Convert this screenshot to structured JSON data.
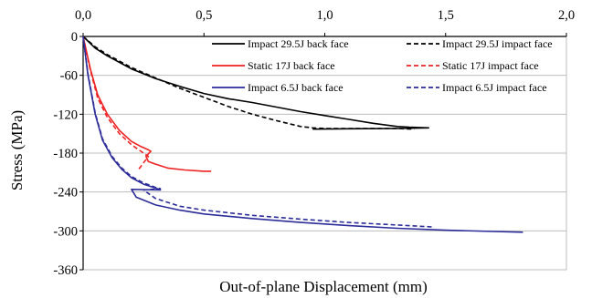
{
  "chart_data": {
    "type": "line",
    "title": "",
    "xlabel": "Out-of-plane Displacement (mm)",
    "ylabel": "Stress (MPa)",
    "xlim": [
      0,
      2
    ],
    "ylim": [
      -360,
      0
    ],
    "x_ticks": [
      "0,0",
      "0,5",
      "1,0",
      "1,5",
      "2,0"
    ],
    "y_ticks": [
      "0",
      "-60",
      "-120",
      "-180",
      "-240",
      "-300",
      "-360"
    ],
    "x_axis_position": "top",
    "grid": "horizontal",
    "legend_position": "top-right",
    "series": [
      {
        "name": "Impact 29.5J back face",
        "color": "#000000",
        "dash": "solid",
        "x": [
          0,
          0.05,
          0.1,
          0.2,
          0.3,
          0.4,
          0.5,
          0.6,
          0.7,
          0.8,
          0.9,
          1.0,
          1.1,
          1.2,
          1.3,
          1.35,
          1.43,
          1.3,
          1.1,
          0.95
        ],
        "y": [
          0,
          -18,
          -30,
          -50,
          -65,
          -77,
          -88,
          -96,
          -102,
          -109,
          -116,
          -122,
          -128,
          -134,
          -139,
          -140,
          -141,
          -142,
          -142.5,
          -143
        ]
      },
      {
        "name": "Impact 29.5J impact face",
        "color": "#000000",
        "dash": "dashed",
        "x": [
          0,
          0.05,
          0.1,
          0.2,
          0.3,
          0.4,
          0.5,
          0.6,
          0.7,
          0.8,
          0.9,
          0.95,
          1.0,
          1.1,
          1.2,
          1.3,
          1.37
        ],
        "y": [
          0,
          -16,
          -28,
          -48,
          -64,
          -80,
          -94,
          -108,
          -120,
          -130,
          -139,
          -141,
          -142,
          -142,
          -142,
          -142,
          -143
        ]
      },
      {
        "name": "Static 17J back face",
        "color": "#ee2222",
        "dash": "solid",
        "x": [
          0,
          0.03,
          0.06,
          0.1,
          0.15,
          0.2,
          0.24,
          0.27,
          0.28,
          0.26,
          0.27,
          0.3,
          0.35,
          0.42,
          0.5,
          0.53
        ],
        "y": [
          0,
          -50,
          -90,
          -120,
          -145,
          -162,
          -170,
          -175,
          -177,
          -185,
          -193,
          -197,
          -203,
          -206,
          -208,
          -208
        ]
      },
      {
        "name": "Static 17J impact face",
        "color": "#ee2222",
        "dash": "dashed",
        "x": [
          0,
          0.03,
          0.06,
          0.1,
          0.15,
          0.2,
          0.25,
          0.27,
          0.25,
          0.23
        ],
        "y": [
          0,
          -52,
          -95,
          -125,
          -150,
          -167,
          -180,
          -185,
          -195,
          -205
        ]
      },
      {
        "name": "Impact 6.5J back face",
        "color": "#2c2c9a",
        "dash": "solid",
        "x": [
          0,
          0.02,
          0.05,
          0.08,
          0.12,
          0.16,
          0.2,
          0.25,
          0.3,
          0.32,
          0.2,
          0.22,
          0.3,
          0.4,
          0.5,
          0.7,
          0.9,
          1.1,
          1.3,
          1.5,
          1.7,
          1.82
        ],
        "y": [
          0,
          -60,
          -120,
          -160,
          -187,
          -205,
          -218,
          -228,
          -234,
          -237,
          -236,
          -248,
          -260,
          -268,
          -274,
          -281,
          -287,
          -292,
          -296,
          -299,
          -301,
          -302
        ]
      },
      {
        "name": "Impact 6.5J impact face",
        "color": "#2c2c9a",
        "dash": "dashed",
        "x": [
          0,
          0.02,
          0.05,
          0.08,
          0.12,
          0.16,
          0.2,
          0.25,
          0.28,
          0.3,
          0.32,
          0.25,
          0.3,
          0.4,
          0.5,
          0.7,
          0.9,
          1.1,
          1.3,
          1.45
        ],
        "y": [
          0,
          -58,
          -118,
          -158,
          -185,
          -203,
          -216,
          -226,
          -230,
          -233,
          -235,
          -237,
          -250,
          -262,
          -268,
          -276,
          -282,
          -287,
          -291,
          -294
        ]
      }
    ]
  }
}
